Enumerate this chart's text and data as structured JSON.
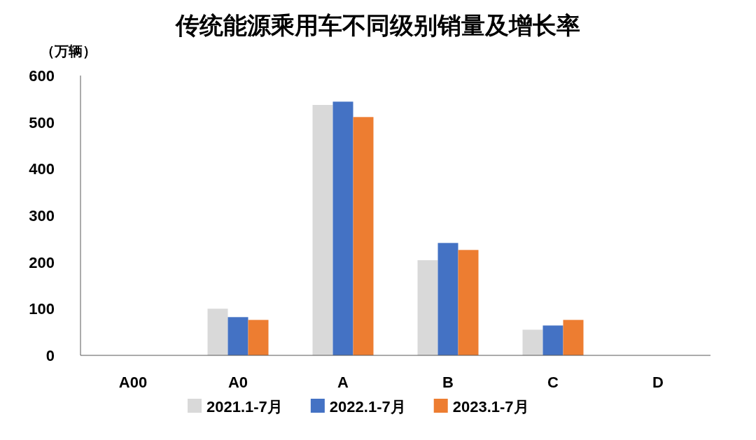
{
  "chart_data": {
    "type": "bar",
    "title": "传统能源乘用车不同级别销量及增长率",
    "ylabel": "（万辆）",
    "categories": [
      "A00",
      "A0",
      "A",
      "B",
      "C",
      "D"
    ],
    "series": [
      {
        "name": "2021.1-7月",
        "color": "#d9d9d9",
        "values": [
          0,
          100,
          537,
          204,
          55,
          0
        ]
      },
      {
        "name": "2022.1-7月",
        "color": "#4472c4",
        "values": [
          0,
          82,
          544,
          241,
          64,
          0
        ]
      },
      {
        "name": "2023.1-7月",
        "color": "#ed7d31",
        "values": [
          0,
          76,
          511,
          226,
          76,
          0
        ]
      }
    ],
    "ylim": [
      0,
      600
    ],
    "yticks": [
      0,
      100,
      200,
      300,
      400,
      500,
      600
    ],
    "grid": false,
    "legend": "bottom"
  }
}
